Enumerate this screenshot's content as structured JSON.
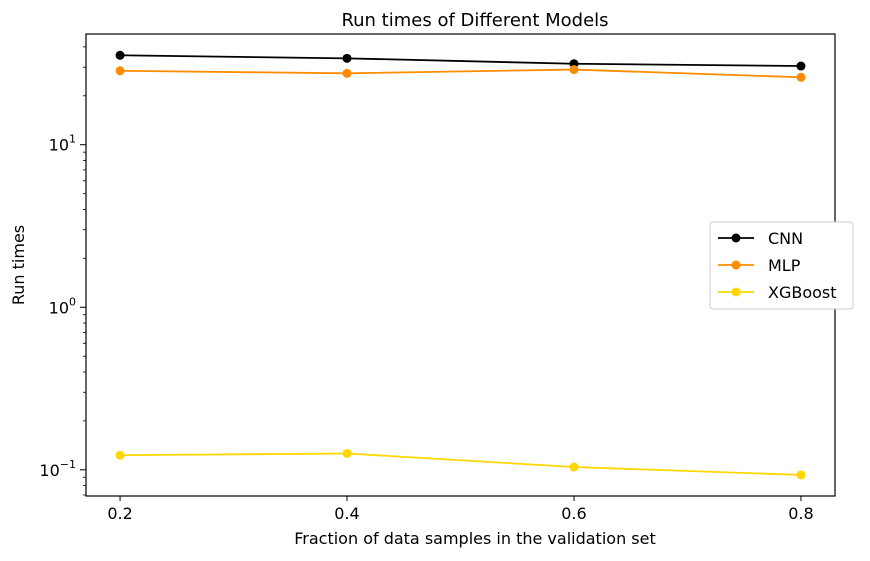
{
  "chart_data": {
    "type": "line",
    "title": "Run times of Different Models",
    "xlabel": "Fraction of data samples in the validation set",
    "ylabel": "Run times",
    "x": [
      0.2,
      0.4,
      0.6,
      0.8
    ],
    "xticks": [
      {
        "value": 0.2,
        "label": "0.2"
      },
      {
        "value": 0.4,
        "label": "0.4"
      },
      {
        "value": 0.6,
        "label": "0.6"
      },
      {
        "value": 0.8,
        "label": "0.8"
      }
    ],
    "yscale": "log",
    "xlim": [
      0.17,
      0.83
    ],
    "ylim": [
      0.069,
      48
    ],
    "yticks": [
      {
        "value": 0.1,
        "base": "10",
        "exp": "−1"
      },
      {
        "value": 1,
        "base": "10",
        "exp": "0"
      },
      {
        "value": 10,
        "base": "10",
        "exp": "1"
      }
    ],
    "grid": false,
    "legend_position": "center-right",
    "series": [
      {
        "name": "CNN",
        "color": "#000000",
        "values": [
          35.5,
          34,
          31.5,
          30.5
        ]
      },
      {
        "name": "MLP",
        "color": "#ff8c00",
        "values": [
          28.5,
          27.5,
          29,
          26
        ]
      },
      {
        "name": "XGBoost",
        "color": "#ffd700",
        "values": [
          0.123,
          0.126,
          0.104,
          0.093
        ]
      }
    ]
  }
}
